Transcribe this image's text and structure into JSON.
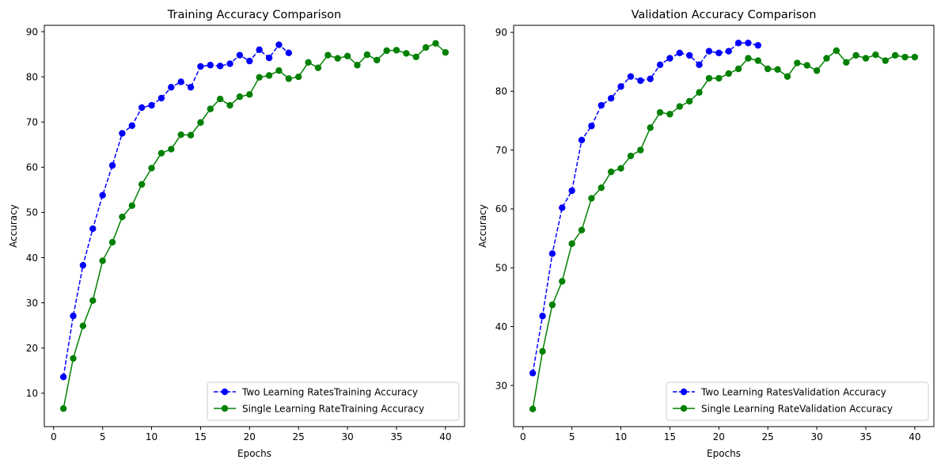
{
  "chart_data": [
    {
      "type": "line",
      "title": "Training Accuracy Comparison",
      "xlabel": "Epochs",
      "ylabel": "Accuracy",
      "xlim": [
        -0.95,
        41.95
      ],
      "ylim": [
        2.6,
        91.4
      ],
      "xticks": [
        0,
        5,
        10,
        15,
        20,
        25,
        30,
        35,
        40
      ],
      "yticks": [
        10,
        20,
        30,
        40,
        50,
        60,
        70,
        80,
        90
      ],
      "grid": false,
      "legend_position": "lower-right",
      "series": [
        {
          "name": "Two Learning RatesTraining Accuracy",
          "color": "#0000ff",
          "linestyle": "dashed",
          "marker": "circle",
          "x": [
            1,
            2,
            3,
            4,
            5,
            6,
            7,
            8,
            9,
            10,
            11,
            12,
            13,
            14,
            15,
            16,
            17,
            18,
            19,
            20,
            21,
            22,
            23,
            24
          ],
          "y": [
            13.6,
            27.1,
            38.3,
            46.4,
            53.8,
            60.4,
            67.5,
            69.2,
            73.2,
            73.7,
            75.3,
            77.7,
            78.9,
            77.7,
            82.3,
            82.6,
            82.4,
            82.9,
            84.8,
            83.5,
            86.0,
            84.2,
            87.1,
            85.3
          ]
        },
        {
          "name": "Single Learning RateTraining Accuracy",
          "color": "#008000",
          "linestyle": "solid",
          "marker": "circle",
          "x": [
            1,
            2,
            3,
            4,
            5,
            6,
            7,
            8,
            9,
            10,
            11,
            12,
            13,
            14,
            15,
            16,
            17,
            18,
            19,
            20,
            21,
            22,
            23,
            24,
            25,
            26,
            27,
            28,
            29,
            30,
            31,
            32,
            33,
            34,
            35,
            36,
            37,
            38,
            39,
            40
          ],
          "y": [
            6.6,
            17.7,
            24.9,
            30.5,
            39.3,
            43.4,
            49.0,
            51.5,
            56.2,
            59.8,
            63.1,
            64.0,
            67.2,
            67.1,
            69.9,
            72.9,
            75.1,
            73.7,
            75.6,
            76.1,
            79.9,
            80.3,
            81.4,
            79.6,
            80.0,
            83.2,
            82.0,
            84.8,
            84.1,
            84.6,
            82.6,
            84.9,
            83.7,
            85.8,
            85.9,
            85.2,
            84.4,
            86.5,
            87.4,
            85.4
          ]
        }
      ]
    },
    {
      "type": "line",
      "title": "Validation Accuracy Comparison",
      "xlabel": "Epochs",
      "ylabel": "Accuracy",
      "xlim": [
        -0.95,
        41.95
      ],
      "ylim": [
        23.0,
        91.2
      ],
      "xticks": [
        0,
        5,
        10,
        15,
        20,
        25,
        30,
        35,
        40
      ],
      "yticks": [
        30,
        40,
        50,
        60,
        70,
        80,
        90
      ],
      "grid": false,
      "legend_position": "lower-right",
      "series": [
        {
          "name": "Two Learning RatesValidation Accuracy",
          "color": "#0000ff",
          "linestyle": "dashed",
          "marker": "circle",
          "x": [
            1,
            2,
            3,
            4,
            5,
            6,
            7,
            8,
            9,
            10,
            11,
            12,
            13,
            14,
            15,
            16,
            17,
            18,
            19,
            20,
            21,
            22,
            23,
            24
          ],
          "y": [
            32.1,
            41.8,
            52.4,
            60.2,
            63.1,
            71.7,
            74.1,
            77.6,
            78.8,
            80.8,
            82.5,
            81.8,
            82.1,
            84.5,
            85.6,
            86.5,
            86.1,
            84.5,
            86.8,
            86.5,
            86.8,
            88.2,
            88.2,
            87.8
          ]
        },
        {
          "name": "Single Learning RateValidation Accuracy",
          "color": "#008000",
          "linestyle": "solid",
          "marker": "circle",
          "x": [
            1,
            2,
            3,
            4,
            5,
            6,
            7,
            8,
            9,
            10,
            11,
            12,
            13,
            14,
            15,
            16,
            17,
            18,
            19,
            20,
            21,
            22,
            23,
            24,
            25,
            26,
            27,
            28,
            29,
            30,
            31,
            32,
            33,
            34,
            35,
            36,
            37,
            38,
            39,
            40
          ],
          "y": [
            26.0,
            35.8,
            43.7,
            47.7,
            54.1,
            56.4,
            61.8,
            63.6,
            66.3,
            66.9,
            69.0,
            70.0,
            73.8,
            76.4,
            76.1,
            77.4,
            78.3,
            79.8,
            82.2,
            82.2,
            83.0,
            83.8,
            85.6,
            85.2,
            83.8,
            83.7,
            82.5,
            84.8,
            84.4,
            83.5,
            85.6,
            86.9,
            84.9,
            86.1,
            85.6,
            86.2,
            85.2,
            86.1,
            85.8,
            85.8
          ]
        }
      ]
    }
  ]
}
